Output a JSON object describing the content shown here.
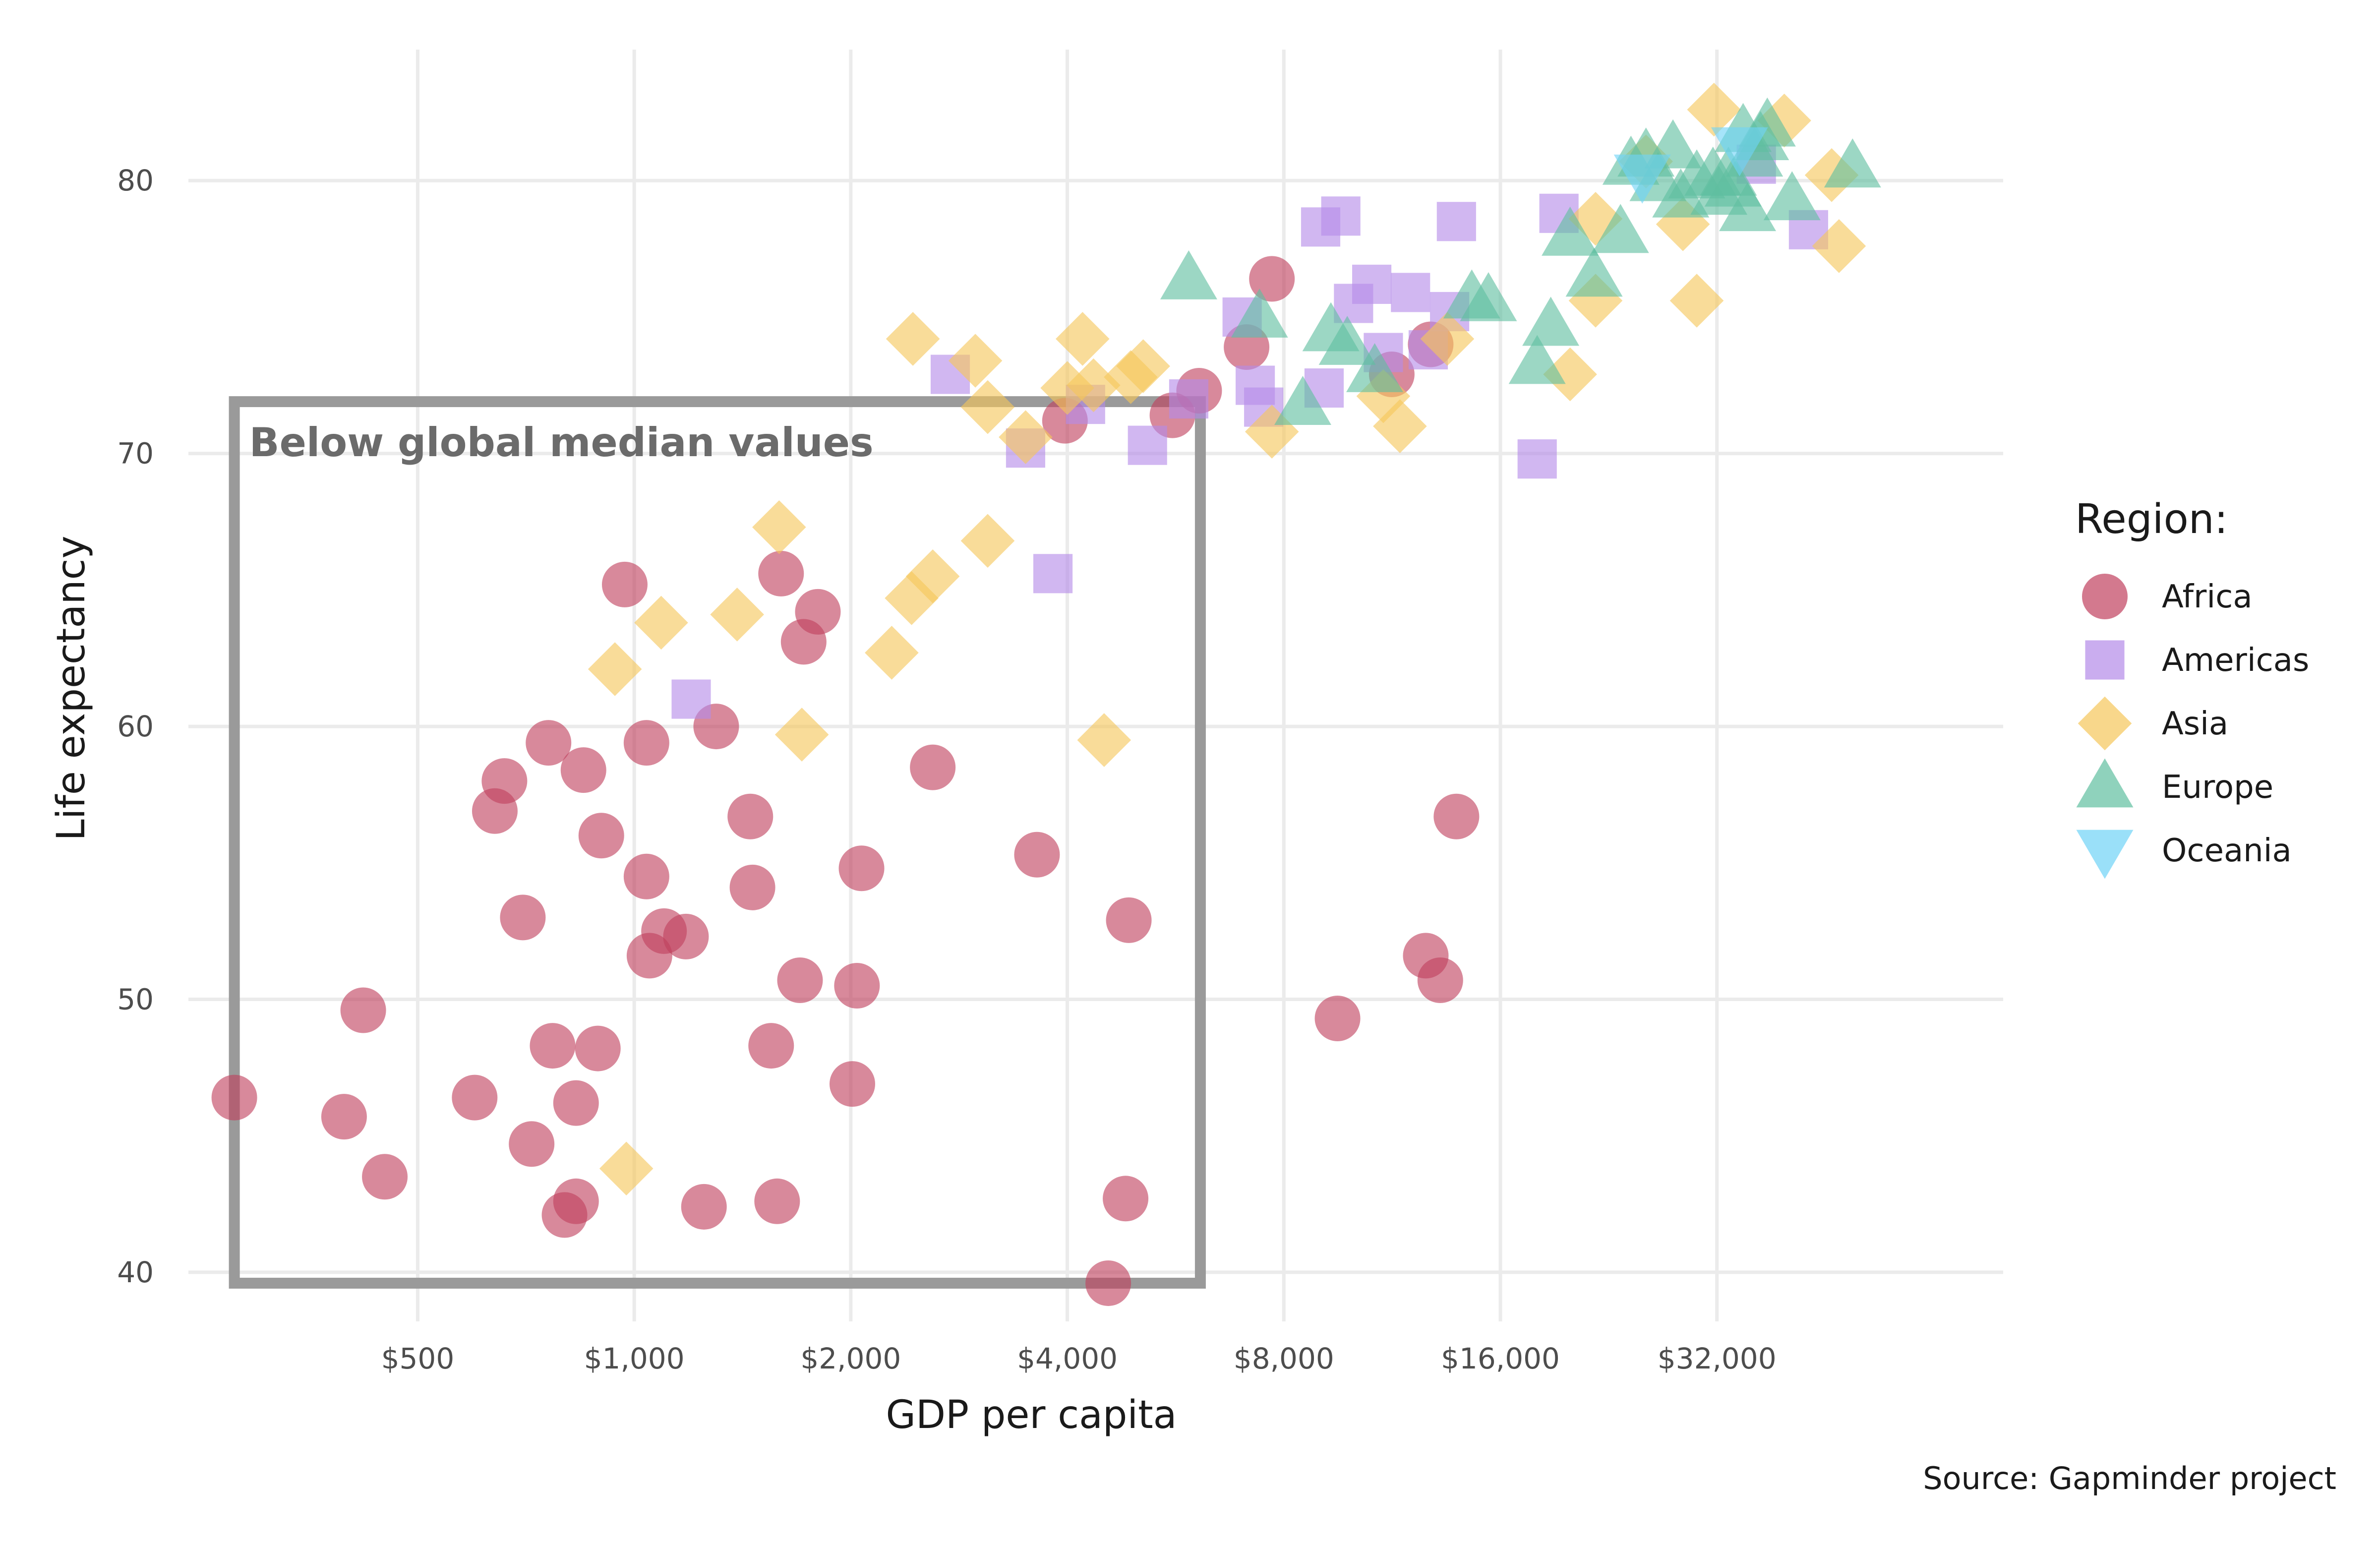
{
  "chart_data": {
    "type": "scatter",
    "xlabel": "GDP per capita",
    "ylabel": "Life expectancy",
    "x_scale": "log2",
    "xlim": [
      240,
      80000
    ],
    "ylim": [
      38.2,
      84.8
    ],
    "x_ticks": [
      500,
      1000,
      2000,
      4000,
      8000,
      16000,
      32000
    ],
    "x_tick_labels": [
      "$500",
      "$1,000",
      "$2,000",
      "$4,000",
      "$8,000",
      "$16,000",
      "$32,000"
    ],
    "y_ticks": [
      40,
      50,
      60,
      70,
      80
    ],
    "y_tick_labels": [
      "40",
      "50",
      "60",
      "70",
      "80"
    ],
    "grid": true,
    "legend": {
      "title": "Region:",
      "position": "right"
    },
    "caption": "Source: Gapminder project",
    "annotation": {
      "text": "Below global median values",
      "x_range": [
        278,
        6124
      ],
      "y_range": [
        39.6,
        71.9
      ]
    },
    "series": [
      {
        "name": "Africa",
        "marker": "circle",
        "color": "#c0405e",
        "points": [
          [
            278,
            46.4
          ],
          [
            395,
            45.7
          ],
          [
            420,
            49.6
          ],
          [
            450,
            43.5
          ],
          [
            600,
            46.4
          ],
          [
            640,
            56.9
          ],
          [
            660,
            58.0
          ],
          [
            700,
            53.0
          ],
          [
            720,
            44.7
          ],
          [
            760,
            59.4
          ],
          [
            770,
            48.3
          ],
          [
            800,
            42.1
          ],
          [
            830,
            42.6
          ],
          [
            830,
            46.2
          ],
          [
            850,
            58.4
          ],
          [
            890,
            48.2
          ],
          [
            900,
            56.0
          ],
          [
            970,
            65.2
          ],
          [
            1040,
            59.4
          ],
          [
            1040,
            54.5
          ],
          [
            1050,
            51.6
          ],
          [
            1100,
            52.5
          ],
          [
            1180,
            52.3
          ],
          [
            1250,
            42.4
          ],
          [
            1300,
            60.0
          ],
          [
            1450,
            56.7
          ],
          [
            1460,
            54.1
          ],
          [
            1550,
            48.3
          ],
          [
            1580,
            42.6
          ],
          [
            1600,
            65.6
          ],
          [
            1700,
            50.7
          ],
          [
            1720,
            63.1
          ],
          [
            1800,
            64.2
          ],
          [
            2010,
            46.9
          ],
          [
            2040,
            50.5
          ],
          [
            2070,
            54.8
          ],
          [
            2600,
            58.5
          ],
          [
            3630,
            55.3
          ],
          [
            3970,
            71.2
          ],
          [
            4560,
            39.6
          ],
          [
            4820,
            42.7
          ],
          [
            4870,
            52.9
          ],
          [
            5600,
            71.4
          ],
          [
            6100,
            72.3
          ],
          [
            7100,
            73.9
          ],
          [
            7700,
            76.4
          ],
          [
            9500,
            49.3
          ],
          [
            11300,
            72.9
          ],
          [
            12800,
            74.0
          ],
          [
            12600,
            51.6
          ],
          [
            13200,
            50.7
          ],
          [
            13900,
            56.7
          ]
        ]
      },
      {
        "name": "Americas",
        "marker": "square",
        "color": "#b48ae8",
        "points": [
          [
            1200,
            61.0
          ],
          [
            2750,
            72.9
          ],
          [
            3500,
            70.2
          ],
          [
            3820,
            65.6
          ],
          [
            4240,
            71.8
          ],
          [
            5170,
            70.3
          ],
          [
            5900,
            72.0
          ],
          [
            7000,
            75.0
          ],
          [
            7300,
            72.5
          ],
          [
            7500,
            71.7
          ],
          [
            9000,
            78.3
          ],
          [
            9100,
            72.4
          ],
          [
            9600,
            78.7
          ],
          [
            10000,
            75.5
          ],
          [
            10600,
            76.2
          ],
          [
            11000,
            73.7
          ],
          [
            12000,
            75.9
          ],
          [
            12700,
            73.8
          ],
          [
            13600,
            75.2
          ],
          [
            13900,
            78.5
          ],
          [
            18000,
            69.8
          ],
          [
            19300,
            78.8
          ],
          [
            36300,
            80.6
          ],
          [
            42900,
            78.2
          ]
        ]
      },
      {
        "name": "Asia",
        "marker": "diamond",
        "color": "#f5c65a",
        "points": [
          [
            940,
            62.1
          ],
          [
            975,
            43.8
          ],
          [
            1090,
            63.8
          ],
          [
            1390,
            64.1
          ],
          [
            1590,
            67.3
          ],
          [
            1710,
            59.7
          ],
          [
            2280,
            62.7
          ],
          [
            2430,
            64.7
          ],
          [
            2440,
            74.2
          ],
          [
            2600,
            65.5
          ],
          [
            2980,
            73.4
          ],
          [
            3100,
            71.7
          ],
          [
            3100,
            66.8
          ],
          [
            3500,
            70.6
          ],
          [
            4000,
            72.4
          ],
          [
            4200,
            74.2
          ],
          [
            4350,
            72.5
          ],
          [
            4500,
            59.5
          ],
          [
            4900,
            72.8
          ],
          [
            5100,
            73.2
          ],
          [
            7700,
            70.8
          ],
          [
            11000,
            72.1
          ],
          [
            11600,
            71.0
          ],
          [
            13500,
            74.2
          ],
          [
            20000,
            72.9
          ],
          [
            21700,
            78.6
          ],
          [
            21700,
            75.6
          ],
          [
            25500,
            80.7
          ],
          [
            28700,
            78.4
          ],
          [
            30000,
            75.6
          ],
          [
            31700,
            82.6
          ],
          [
            39700,
            82.2
          ],
          [
            46200,
            80.2
          ],
          [
            47300,
            77.6
          ]
        ]
      },
      {
        "name": "Europe",
        "marker": "triangle-up",
        "color": "#5fbfa0",
        "points": [
          [
            5900,
            76.4
          ],
          [
            7400,
            75.0
          ],
          [
            8500,
            71.8
          ],
          [
            9300,
            74.5
          ],
          [
            9800,
            74.0
          ],
          [
            10700,
            73.0
          ],
          [
            14600,
            75.7
          ],
          [
            15400,
            75.6
          ],
          [
            18000,
            73.3
          ],
          [
            18800,
            74.7
          ],
          [
            20000,
            78.0
          ],
          [
            21600,
            76.5
          ],
          [
            23500,
            78.1
          ],
          [
            24300,
            80.6
          ],
          [
            25500,
            80.9
          ],
          [
            26500,
            80.0
          ],
          [
            27800,
            81.2
          ],
          [
            28500,
            79.4
          ],
          [
            30000,
            80.1
          ],
          [
            31600,
            80.2
          ],
          [
            32200,
            79.5
          ],
          [
            33200,
            80.2
          ],
          [
            33700,
            79.8
          ],
          [
            34800,
            81.8
          ],
          [
            35300,
            78.9
          ],
          [
            36100,
            80.9
          ],
          [
            36800,
            81.5
          ],
          [
            37600,
            82.0
          ],
          [
            40700,
            79.3
          ],
          [
            49400,
            80.5
          ]
        ]
      },
      {
        "name": "Oceania",
        "marker": "triangle-down",
        "color": "#6fd3f7",
        "points": [
          [
            25200,
            80.2
          ],
          [
            34400,
            81.2
          ]
        ]
      }
    ]
  }
}
